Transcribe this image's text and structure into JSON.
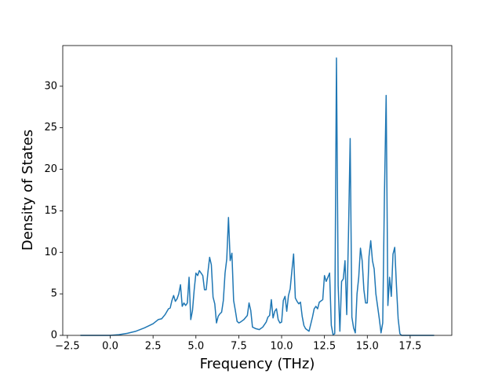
{
  "chart_data": {
    "type": "line",
    "x_label": "Frequency (THz)",
    "y_label": "Density of States",
    "x": [
      -1.74,
      -1.0,
      0.0,
      0.5,
      1.0,
      1.5,
      2.0,
      2.5,
      2.8,
      3.0,
      3.2,
      3.4,
      3.5,
      3.6,
      3.7,
      3.8,
      3.9,
      4.0,
      4.1,
      4.2,
      4.3,
      4.4,
      4.5,
      4.6,
      4.7,
      4.8,
      4.9,
      5.0,
      5.1,
      5.2,
      5.3,
      5.4,
      5.5,
      5.6,
      5.7,
      5.8,
      5.9,
      6.0,
      6.1,
      6.2,
      6.3,
      6.4,
      6.5,
      6.6,
      6.7,
      6.8,
      6.9,
      7.0,
      7.1,
      7.2,
      7.3,
      7.4,
      7.5,
      7.6,
      7.8,
      8.0,
      8.1,
      8.2,
      8.3,
      8.5,
      8.7,
      8.9,
      9.1,
      9.2,
      9.3,
      9.4,
      9.5,
      9.6,
      9.7,
      9.8,
      9.9,
      10.0,
      10.1,
      10.2,
      10.3,
      10.4,
      10.5,
      10.6,
      10.7,
      10.8,
      10.9,
      11.0,
      11.1,
      11.2,
      11.3,
      11.4,
      11.6,
      11.8,
      11.9,
      12.0,
      12.1,
      12.2,
      12.4,
      12.5,
      12.6,
      12.7,
      12.8,
      12.9,
      13.0,
      13.1,
      13.2,
      13.3,
      13.4,
      13.5,
      13.6,
      13.7,
      13.8,
      13.9,
      14.0,
      14.1,
      14.2,
      14.3,
      14.4,
      14.5,
      14.6,
      14.7,
      14.8,
      14.9,
      15.0,
      15.1,
      15.2,
      15.3,
      15.4,
      15.5,
      15.6,
      15.7,
      15.8,
      15.9,
      16.0,
      16.1,
      16.2,
      16.3,
      16.4,
      16.5,
      16.6,
      16.7,
      16.8,
      16.9,
      17.0,
      18.9
    ],
    "series": [
      {
        "color": "#1f77b4",
        "values": [
          0,
          0,
          0,
          0.08,
          0.25,
          0.5,
          0.9,
          1.4,
          1.9,
          2.0,
          2.5,
          3.2,
          3.3,
          4.2,
          4.8,
          4.1,
          4.4,
          5.0,
          6.1,
          3.5,
          3.9,
          3.6,
          3.9,
          7.0,
          1.9,
          3.0,
          5.5,
          7.5,
          7.2,
          7.8,
          7.5,
          7.2,
          5.5,
          5.5,
          7.6,
          9.4,
          8.5,
          4.6,
          3.8,
          1.5,
          2.3,
          2.6,
          2.8,
          4.2,
          7.5,
          9.2,
          14.2,
          9.0,
          9.9,
          4.2,
          3.0,
          1.7,
          1.5,
          1.6,
          1.9,
          2.4,
          3.9,
          3.0,
          1.0,
          0.8,
          0.7,
          1.0,
          1.6,
          2.2,
          2.4,
          4.3,
          2.1,
          2.9,
          3.2,
          1.9,
          1.5,
          1.6,
          4.2,
          4.7,
          2.9,
          4.8,
          5.6,
          7.8,
          9.8,
          4.5,
          4.1,
          3.8,
          4.0,
          2.3,
          1.2,
          0.8,
          0.5,
          2.2,
          3.2,
          3.5,
          3.2,
          4.0,
          4.3,
          7.2,
          6.5,
          7.0,
          7.5,
          1.2,
          0.1,
          0.2,
          33.4,
          6.0,
          0.5,
          6.5,
          6.8,
          9.0,
          2.5,
          12.0,
          23.7,
          2.2,
          0.9,
          0.3,
          5.0,
          7.0,
          10.5,
          9.0,
          5.5,
          3.9,
          3.9,
          9.5,
          11.4,
          9.0,
          8.0,
          5.0,
          3.5,
          2.0,
          0.3,
          1.5,
          17.0,
          28.9,
          3.6,
          7.0,
          4.7,
          9.8,
          10.6,
          6.0,
          2.0,
          0.2,
          0,
          0
        ]
      }
    ],
    "xlim": [
      -2.77,
      19.93
    ],
    "ylim": [
      0,
      34.9
    ],
    "xticks": [
      {
        "value": -2.5,
        "label": "−2.5"
      },
      {
        "value": 0,
        "label": "0.0"
      },
      {
        "value": 2.5,
        "label": "2.5"
      },
      {
        "value": 5,
        "label": "5.0"
      },
      {
        "value": 7.5,
        "label": "7.5"
      },
      {
        "value": 10,
        "label": "10.0"
      },
      {
        "value": 12.5,
        "label": "12.5"
      },
      {
        "value": 15,
        "label": "15.0"
      },
      {
        "value": 17.5,
        "label": "17.5"
      }
    ],
    "yticks": [
      0,
      5,
      10,
      15,
      20,
      25,
      30
    ]
  }
}
